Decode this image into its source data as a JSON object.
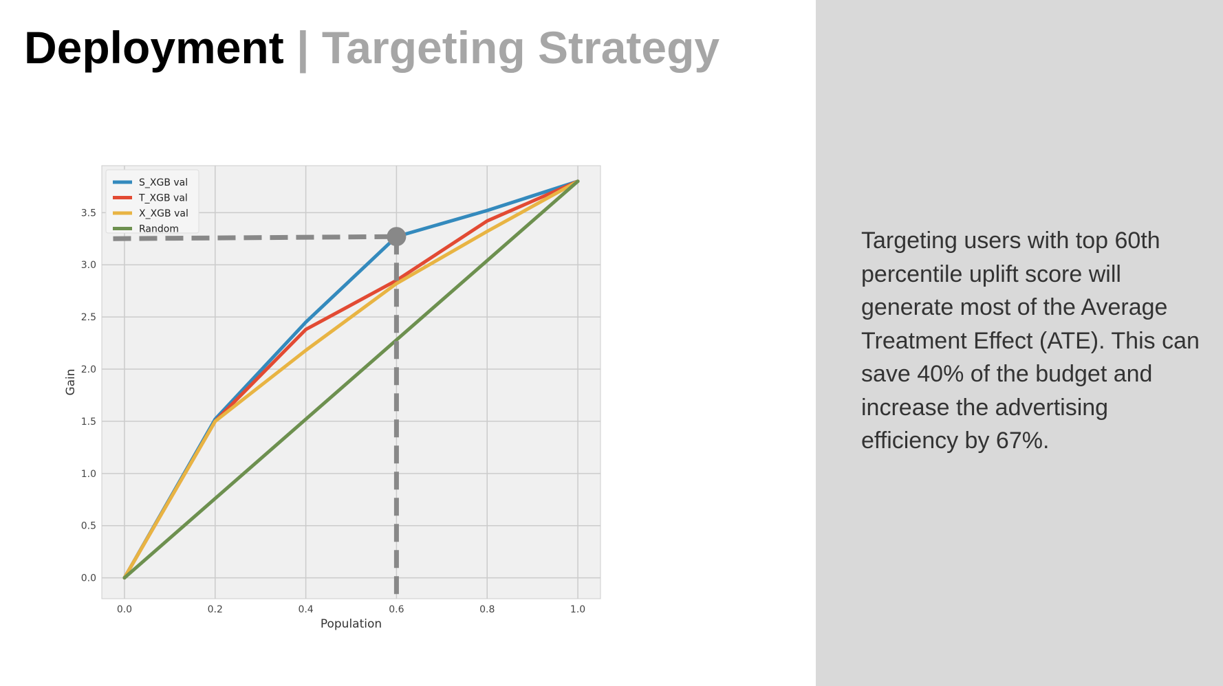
{
  "slide": {
    "title_main": "Deployment",
    "title_separator": "|",
    "title_sub": "Targeting Strategy",
    "description": "Targeting users with top 60th percentile uplift score will generate most of the Average Treatment Effect (ATE). This can save 40% of the budget and increase the advertising efficiency by 67%.",
    "colors": {
      "title_main": "#000000",
      "title_sub": "#a6a6a6",
      "right_panel": "#d9d9d9",
      "description_text": "#333333"
    }
  },
  "chart_data": {
    "type": "line",
    "title": "",
    "xlabel": "Population",
    "ylabel": "Gain",
    "xlim": [
      -0.05,
      1.05
    ],
    "ylim": [
      -0.2,
      3.95
    ],
    "xticks": [
      0.0,
      0.2,
      0.4,
      0.6,
      0.8,
      1.0
    ],
    "xtick_labels": [
      "0.0",
      "0.2",
      "0.4",
      "0.6",
      "0.8",
      "1.0"
    ],
    "yticks": [
      0.0,
      0.5,
      1.0,
      1.5,
      2.0,
      2.5,
      3.0,
      3.5
    ],
    "ytick_labels": [
      "0.0",
      "0.5",
      "1.0",
      "1.5",
      "2.0",
      "2.5",
      "3.0",
      "3.5"
    ],
    "grid": true,
    "legend_position": "top-left",
    "x": [
      0.0,
      0.2,
      0.4,
      0.6,
      0.8,
      1.0
    ],
    "series": [
      {
        "name": "S_XGB val",
        "color": "#348abd",
        "values": [
          0.0,
          1.52,
          2.45,
          3.27,
          3.52,
          3.8
        ]
      },
      {
        "name": "T_XGB val",
        "color": "#e24a33",
        "values": [
          0.0,
          1.5,
          2.38,
          2.85,
          3.42,
          3.8
        ]
      },
      {
        "name": "X_XGB val",
        "color": "#e8b443",
        "values": [
          0.0,
          1.5,
          2.18,
          2.82,
          3.32,
          3.8
        ]
      },
      {
        "name": "Random",
        "color": "#6d904f",
        "values": [
          0.0,
          0.76,
          1.52,
          2.28,
          3.04,
          3.8
        ]
      }
    ],
    "annotation": {
      "marker_x": 0.6,
      "marker_y": 3.27,
      "horizontal_from_x": -0.025,
      "color": "#888888"
    }
  }
}
